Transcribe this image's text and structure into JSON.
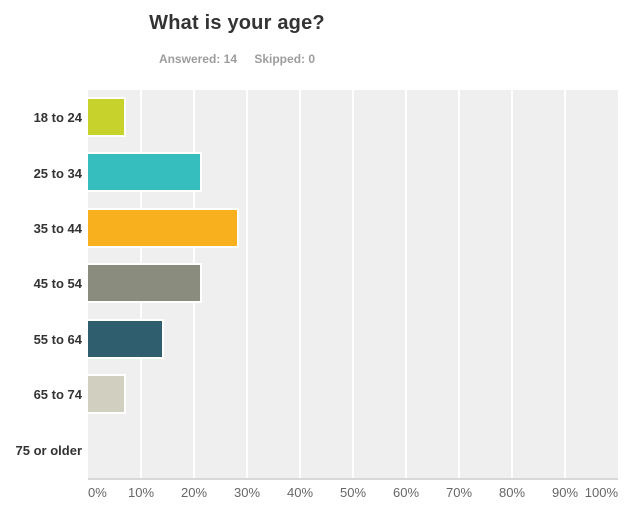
{
  "header": {
    "title": "What is your age?",
    "answered_label": "Answered:",
    "answered_value": "14",
    "skipped_label": "Skipped:",
    "skipped_value": "0"
  },
  "colors": {
    "plot_background": "#efefef",
    "gridline": "#ffffff",
    "axis_line": "#d8d8d8",
    "title_text": "#333333",
    "stats_text": "#9d9d9d",
    "category_text": "#333333",
    "tick_text": "#666666"
  },
  "chart_data": {
    "type": "bar",
    "orientation": "horizontal",
    "title": "What is your age?",
    "answered": 14,
    "skipped": 0,
    "categories": [
      "18 to 24",
      "25 to 34",
      "35 to 44",
      "45 to 54",
      "55 to 64",
      "65 to 74",
      "75 or older"
    ],
    "values": [
      7.14,
      21.43,
      28.57,
      21.43,
      14.29,
      7.14,
      0
    ],
    "unit": "%",
    "bar_colors": [
      "#c7d32c",
      "#36bebf",
      "#f8b01e",
      "#8a8c7d",
      "#2f5f6e",
      "#d0cfc0",
      null
    ],
    "x_ticks": [
      "0%",
      "10%",
      "20%",
      "30%",
      "40%",
      "50%",
      "60%",
      "70%",
      "80%",
      "90%",
      "100%"
    ],
    "xlim": [
      0,
      100
    ],
    "grid": true,
    "legend": "none"
  }
}
